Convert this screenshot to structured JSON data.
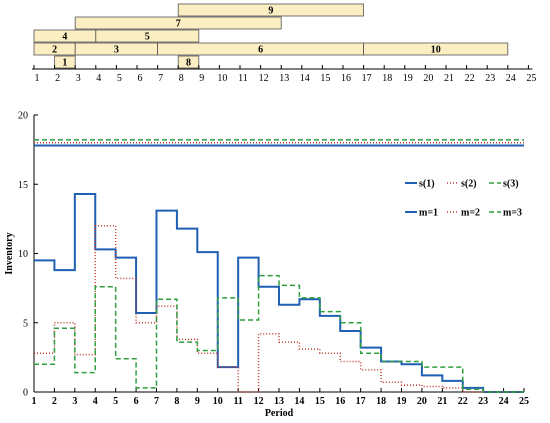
{
  "chart_data": [
    {
      "type": "gantt",
      "x_ticks": [
        1,
        2,
        3,
        4,
        5,
        6,
        7,
        8,
        9,
        10,
        11,
        12,
        13,
        14,
        15,
        16,
        17,
        18,
        19,
        20,
        21,
        22,
        23,
        24,
        25
      ],
      "bar_color": "#fbeec2",
      "tasks": [
        {
          "label": "9",
          "start": 8,
          "end": 17,
          "row": 1
        },
        {
          "label": "7",
          "start": 3,
          "end": 13,
          "row": 2
        },
        {
          "label": "4",
          "start": 1,
          "end": 4,
          "row": 3
        },
        {
          "label": "5",
          "start": 4,
          "end": 9,
          "row": 3
        },
        {
          "label": "2",
          "start": 1,
          "end": 3,
          "row": 4
        },
        {
          "label": "3",
          "start": 3,
          "end": 7,
          "row": 4
        },
        {
          "label": "6",
          "start": 7,
          "end": 17,
          "row": 4
        },
        {
          "label": "10",
          "start": 17,
          "end": 24,
          "row": 4
        },
        {
          "label": "1",
          "start": 2,
          "end": 3,
          "row": 5
        },
        {
          "label": "8",
          "start": 8,
          "end": 9,
          "row": 5
        }
      ]
    },
    {
      "type": "line",
      "xlabel": "Period",
      "ylabel": "Inventory",
      "xlim": [
        1,
        25
      ],
      "ylim": [
        0,
        20
      ],
      "x_ticks": [
        1,
        2,
        3,
        4,
        5,
        6,
        7,
        8,
        9,
        10,
        11,
        12,
        13,
        14,
        15,
        16,
        17,
        18,
        19,
        20,
        21,
        22,
        23,
        24,
        25
      ],
      "y_ticks": [
        0,
        5,
        10,
        15,
        20
      ],
      "legend_position": "right",
      "series": [
        {
          "name": "s(1)",
          "color": "#1f5fb4",
          "dash": "solid",
          "width": 2,
          "values": [
            9.5,
            8.8,
            14.3,
            10.3,
            9.7,
            5.7,
            13.1,
            11.8,
            10.1,
            1.8,
            9.7,
            7.6,
            6.3,
            6.7,
            5.5,
            4.4,
            3.2,
            2.2,
            2.0,
            1.2,
            0.8,
            0.3,
            0,
            0
          ]
        },
        {
          "name": "s(2)",
          "color": "#c0392b",
          "dash": "1,2",
          "width": 1.5,
          "values": [
            2.8,
            5.0,
            2.7,
            12.0,
            8.2,
            5.0,
            6.2,
            3.8,
            2.8,
            1.8,
            0,
            4.2,
            3.6,
            3.1,
            2.8,
            2.2,
            1.6,
            0.7,
            0.5,
            0.4,
            0.3,
            0,
            0,
            0
          ]
        },
        {
          "name": "s(3)",
          "color": "#2e9e3f",
          "dash": "5,3",
          "width": 1.5,
          "values": [
            2.0,
            4.6,
            1.4,
            7.6,
            2.4,
            0.3,
            6.7,
            3.6,
            3.0,
            6.8,
            5.2,
            8.4,
            7.7,
            6.8,
            5.8,
            5.0,
            2.8,
            2.2,
            2.2,
            1.8,
            1.8,
            0.2,
            0,
            0
          ]
        },
        {
          "name": "m=1",
          "color": "#1f5fb4",
          "dash": "solid",
          "width": 2,
          "values": [
            17.8,
            17.8
          ]
        },
        {
          "name": "m=2",
          "color": "#c0392b",
          "dash": "1,2",
          "width": 1.5,
          "values": [
            18.0,
            18.0
          ]
        },
        {
          "name": "m=3",
          "color": "#2e9e3f",
          "dash": "5,3",
          "width": 1.5,
          "values": [
            18.2,
            18.2
          ]
        }
      ]
    }
  ]
}
